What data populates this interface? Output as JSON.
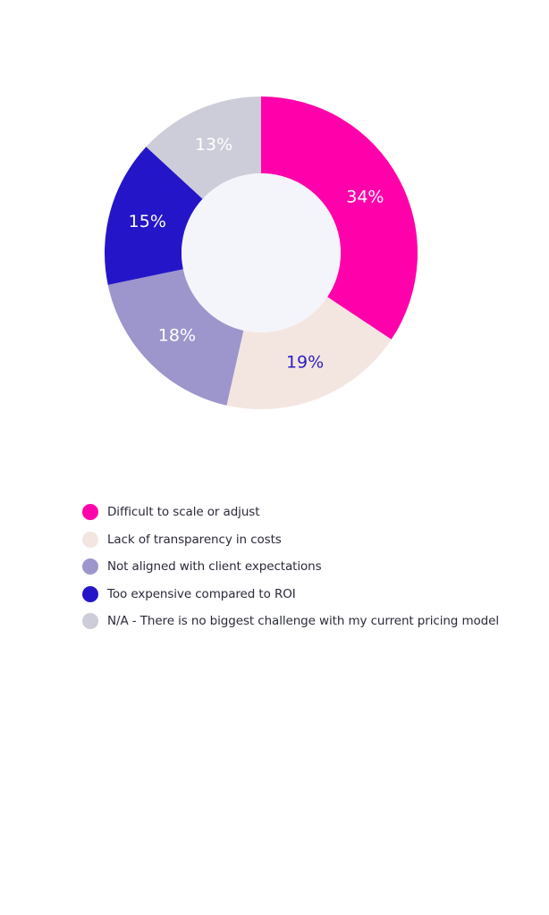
{
  "chart_data": {
    "type": "pie",
    "donut": true,
    "title": "",
    "slices": [
      {
        "label": "Difficult to scale or adjust",
        "value": 34,
        "display": "34%",
        "color": "#FF00AA",
        "text_color": "#FFFFFF"
      },
      {
        "label": "Lack of transparency in costs",
        "value": 19,
        "display": "19%",
        "color": "#F3E6E1",
        "text_color": "#2B1FC4"
      },
      {
        "label": "Not aligned with client expectations",
        "value": 18,
        "display": "18%",
        "color": "#9C96CC",
        "text_color": "#FFFFFF"
      },
      {
        "label": "Too expensive compared to ROI",
        "value": 15,
        "display": "15%",
        "color": "#2416C8",
        "text_color": "#FFFFFF"
      },
      {
        "label": "N/A - There is no biggest challenge with my current pricing model",
        "value": 13,
        "display": "13%",
        "color": "#CCCDD9",
        "text_color": "#FFFFFF"
      }
    ],
    "center_fill": "#F4F5FA",
    "legend_position": "bottom-left"
  }
}
